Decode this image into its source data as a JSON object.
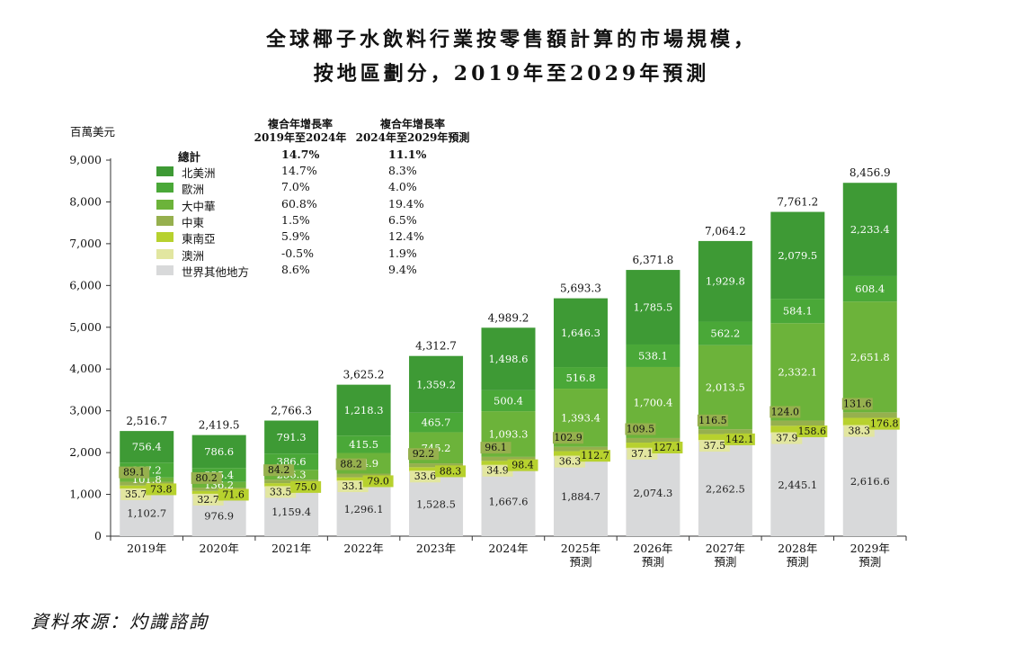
{
  "title_line1": "全球椰子水飲料行業按零售額計算的市場規模，",
  "title_line2": "按地區劃分，2019年至2029年預測",
  "unit": "百萬美元",
  "source": "資料來源：灼識諮詢",
  "legend": {
    "header1": [
      "複合年增長率",
      "2019年至2024年"
    ],
    "header2": [
      "複合年增長率",
      "2024年至2029年預測"
    ],
    "total_label": "總計",
    "total_c1": "14.7%",
    "total_c2": "11.1%",
    "rows": [
      {
        "name": "北美洲",
        "c1": "14.7%",
        "c2": "8.3%",
        "color": "#3e9a35"
      },
      {
        "name": "歐洲",
        "c1": "7.0%",
        "c2": "4.0%",
        "color": "#4aa838"
      },
      {
        "name": "大中華",
        "c1": "60.8%",
        "c2": "19.4%",
        "color": "#6cb33a"
      },
      {
        "name": "中東",
        "c1": "1.5%",
        "c2": "6.5%",
        "color": "#96b04e"
      },
      {
        "name": "東南亞",
        "c1": "5.9%",
        "c2": "12.4%",
        "color": "#b7d12e"
      },
      {
        "name": "澳洲",
        "c1": "-0.5%",
        "c2": "1.9%",
        "color": "#e2e6a0"
      },
      {
        "name": "世界其他地方",
        "c1": "8.6%",
        "c2": "9.4%",
        "color": "#d8d9da"
      }
    ]
  },
  "chart_data": {
    "type": "bar",
    "stacked": true,
    "categories": [
      "2019年",
      "2020年",
      "2021年",
      "2022年",
      "2023年",
      "2024年",
      "2025年\n預測",
      "2026年\n預測",
      "2027年\n預測",
      "2028年\n預測",
      "2029年\n預測"
    ],
    "ylim": [
      0,
      9000
    ],
    "yticks": [
      "0",
      "1,000",
      "2,000",
      "3,000",
      "4,000",
      "5,000",
      "6,000",
      "7,000",
      "8,000",
      "9,000"
    ],
    "ylabel": "百萬美元",
    "series": [
      {
        "name": "世界其他地方",
        "color": "#d8d9da",
        "values": [
          1102.7,
          976.9,
          1159.4,
          1296.1,
          1528.5,
          1667.6,
          1884.7,
          2074.3,
          2262.5,
          2445.1,
          2616.6
        ],
        "labels": [
          "1,102.7",
          "976.9",
          "1,159.4",
          "1,296.1",
          "1,528.5",
          "1,667.6",
          "1,884.7",
          "2,074.3",
          "2,262.5",
          "2,445.1",
          "2,616.6"
        ]
      },
      {
        "name": "澳洲",
        "color": "#e2e6a0",
        "values": [
          35.7,
          32.7,
          33.5,
          33.1,
          33.6,
          34.9,
          36.3,
          37.1,
          37.5,
          37.9,
          38.3
        ],
        "labels": [
          "35.7",
          "32.7",
          "33.5",
          "33.1",
          "33.6",
          "34.9",
          "36.3",
          "37.1",
          "37.5",
          "37.9",
          "38.3"
        ]
      },
      {
        "name": "東南亞",
        "color": "#b7d12e",
        "values": [
          73.8,
          71.6,
          75.0,
          79.0,
          88.3,
          98.4,
          112.7,
          127.1,
          142.1,
          158.6,
          176.8
        ],
        "labels": [
          "73.8",
          "71.6",
          "75.0",
          "79.0",
          "88.3",
          "98.4",
          "112.7",
          "127.1",
          "142.1",
          "158.6",
          "176.8"
        ]
      },
      {
        "name": "中東",
        "color": "#96b04e",
        "values": [
          89.1,
          80.2,
          84.2,
          88.2,
          92.2,
          96.1,
          102.9,
          109.5,
          116.5,
          124.0,
          131.6
        ],
        "labels": [
          "89.1",
          "80.2",
          "84.2",
          "88.2",
          "92.2",
          "96.1",
          "102.9",
          "109.5",
          "116.5",
          "124.0",
          "131.6"
        ]
      },
      {
        "name": "大中華",
        "color": "#6cb33a",
        "values": [
          101.8,
          136.2,
          236.3,
          494.9,
          745.2,
          1093.3,
          1393.4,
          1700.4,
          2013.5,
          2332.1,
          2651.8
        ],
        "labels": [
          "101.8",
          "136.2",
          "236.3",
          "494.9",
          "745.2",
          "1,093.3",
          "1,393.4",
          "1,700.4",
          "2,013.5",
          "2,332.1",
          "2,651.8"
        ]
      },
      {
        "name": "歐洲",
        "color": "#4aa838",
        "values": [
          357.2,
          335.4,
          386.6,
          415.5,
          465.7,
          500.4,
          516.8,
          538.1,
          562.2,
          584.1,
          608.4
        ],
        "labels": [
          "357.2",
          "335.4",
          "386.6",
          "415.5",
          "465.7",
          "500.4",
          "516.8",
          "538.1",
          "562.2",
          "584.1",
          "608.4"
        ]
      },
      {
        "name": "北美洲",
        "color": "#3e9a35",
        "values": [
          756.4,
          786.6,
          791.3,
          1218.3,
          1359.2,
          1498.6,
          1646.3,
          1785.5,
          1929.8,
          2079.5,
          2233.4
        ],
        "labels": [
          "756.4",
          "786.6",
          "791.3",
          "1,218.3",
          "1,359.2",
          "1,498.6",
          "1,646.3",
          "1,785.5",
          "1,929.8",
          "2,079.5",
          "2,233.4"
        ]
      }
    ],
    "totals": [
      2516.7,
      2419.5,
      2766.3,
      3625.2,
      4312.7,
      4989.2,
      5693.3,
      6371.8,
      7064.2,
      7761.2,
      8456.9
    ],
    "total_labels": [
      "2,516.7",
      "2,419.5",
      "2,766.3",
      "3,625.2",
      "4,312.7",
      "4,989.2",
      "5,693.3",
      "6,371.8",
      "7,064.2",
      "7,761.2",
      "8,456.9"
    ]
  }
}
